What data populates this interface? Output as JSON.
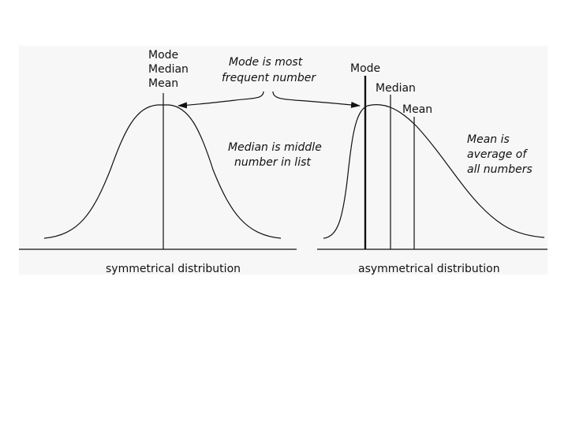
{
  "symmetrical": {
    "labels": {
      "mode": "Mode",
      "median": "Median",
      "mean": "Mean"
    },
    "caption": "symmetrical distribution"
  },
  "asymmetrical": {
    "labels": {
      "mode": "Mode",
      "median": "Median",
      "mean": "Mean"
    },
    "caption": "asymmetrical distribution"
  },
  "notes": {
    "mode_line1": "Mode is most",
    "mode_line2": "frequent number",
    "median_line1": "Median is middle",
    "median_line2": "number in list",
    "mean_line1": "Mean is",
    "mean_line2": "average of",
    "mean_line3": "all numbers"
  }
}
